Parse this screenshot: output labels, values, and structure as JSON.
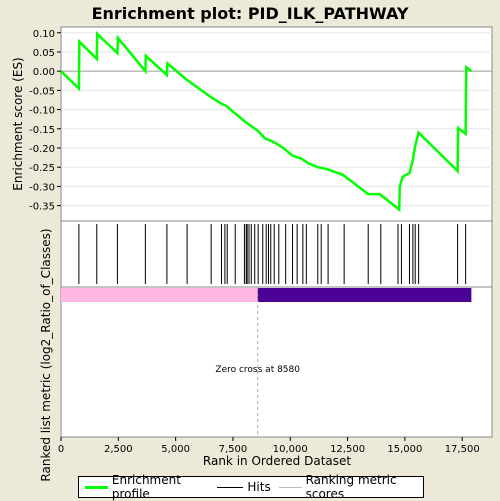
{
  "chart_data": {
    "type": "line",
    "title": "Enrichment plot: PID_ILK_PATHWAY",
    "ylabel_top": "Enrichment score (ES)",
    "ylabel_bottom": "Ranked list metric (log2_Ratio_of_Classes)",
    "xlabel": "Rank in Ordered Dataset",
    "xlim": [
      0,
      18800
    ],
    "ylim": [
      -0.39,
      0.115
    ],
    "x_ticks": [
      0,
      2500,
      5000,
      7500,
      10000,
      12500,
      15000,
      17500
    ],
    "x_tick_labels": [
      "0",
      "2,500",
      "5,000",
      "7,500",
      "10,000",
      "12,500",
      "15,000",
      "17,500"
    ],
    "y_ticks": [
      0.1,
      0.05,
      0.0,
      -0.05,
      -0.1,
      -0.15,
      -0.2,
      -0.25,
      -0.3,
      -0.35
    ],
    "y_tick_labels": [
      "0.10",
      "0.05",
      "0.00",
      "-0.05",
      "-0.10",
      "-0.15",
      "-0.20",
      "-0.25",
      "-0.30",
      "-0.35"
    ],
    "series": [
      {
        "name": "Enrichment profile",
        "color": "#00FF00",
        "x": [
          0,
          780,
          800,
          1560,
          1580,
          2460,
          2480,
          3680,
          3700,
          4620,
          4640,
          5480,
          6600,
          7000,
          7200,
          7600,
          8000,
          8580,
          8900,
          9300,
          9700,
          10100,
          10500,
          10800,
          11200,
          11600,
          12300,
          13400,
          13900,
          14750,
          14780,
          14900,
          15200,
          15350,
          15450,
          15600,
          17300,
          17320,
          17650,
          17680,
          17900
        ],
        "y": [
          0.0,
          -0.045,
          0.077,
          0.032,
          0.097,
          0.047,
          0.087,
          0.0,
          0.04,
          -0.01,
          0.02,
          -0.022,
          -0.07,
          -0.085,
          -0.09,
          -0.11,
          -0.13,
          -0.155,
          -0.175,
          -0.185,
          -0.2,
          -0.22,
          -0.228,
          -0.24,
          -0.25,
          -0.255,
          -0.27,
          -0.32,
          -0.32,
          -0.36,
          -0.3,
          -0.275,
          -0.265,
          -0.23,
          -0.195,
          -0.16,
          -0.26,
          -0.148,
          -0.163,
          0.01,
          0.0
        ]
      }
    ],
    "hits": [
      780,
      1560,
      2460,
      3680,
      4620,
      5500,
      6550,
      7000,
      7150,
      7250,
      7600,
      8000,
      8080,
      8120,
      8200,
      8300,
      8450,
      8600,
      8800,
      8950,
      9050,
      9150,
      9300,
      9500,
      9800,
      10100,
      10300,
      10550,
      10700,
      11200,
      11350,
      11650,
      12350,
      13400,
      13950,
      14700,
      14850,
      15200,
      15350,
      15450,
      15600,
      17300,
      17650
    ],
    "metric_bar": {
      "positive_color": "#FFB6E1",
      "negative_color": "#4B0096",
      "positive_end": 8580,
      "negative_end": 17900
    },
    "zero_cross": 8580,
    "annotation": "Zero cross at 8580",
    "legend": [
      {
        "label": "Enrichment profile",
        "color": "#00FF00"
      },
      {
        "label": "Hits",
        "color": "#000000"
      },
      {
        "label": "Ranking metric scores",
        "color": "#BBBBBB"
      }
    ],
    "legend_placement": "bottom"
  }
}
